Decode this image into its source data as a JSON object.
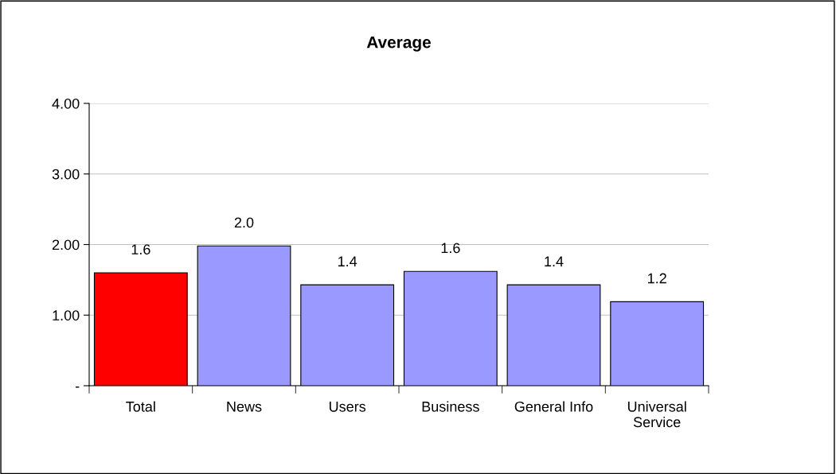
{
  "chart_data": {
    "type": "bar",
    "title": "Average",
    "categories": [
      "Total",
      "News",
      "Users",
      "Business",
      "General Info",
      "Universal Service"
    ],
    "values": [
      1.6,
      1.98,
      1.43,
      1.62,
      1.43,
      1.19
    ],
    "colors": [
      "#ff0000",
      "#9999ff",
      "#9999ff",
      "#9999ff",
      "#9999ff",
      "#9999ff"
    ],
    "value_labels": [
      "1.6",
      "2.0",
      "1.4",
      "1.6",
      "1.4",
      "1.2"
    ],
    "ylim": [
      0,
      4
    ],
    "yticks": [
      {
        "value": 0,
        "label": "-"
      },
      {
        "value": 1,
        "label": "1.00"
      },
      {
        "value": 2,
        "label": "2.00"
      },
      {
        "value": 3,
        "label": "3.00"
      },
      {
        "value": 4,
        "label": "4.00"
      }
    ],
    "grid": "y",
    "legend": false
  }
}
